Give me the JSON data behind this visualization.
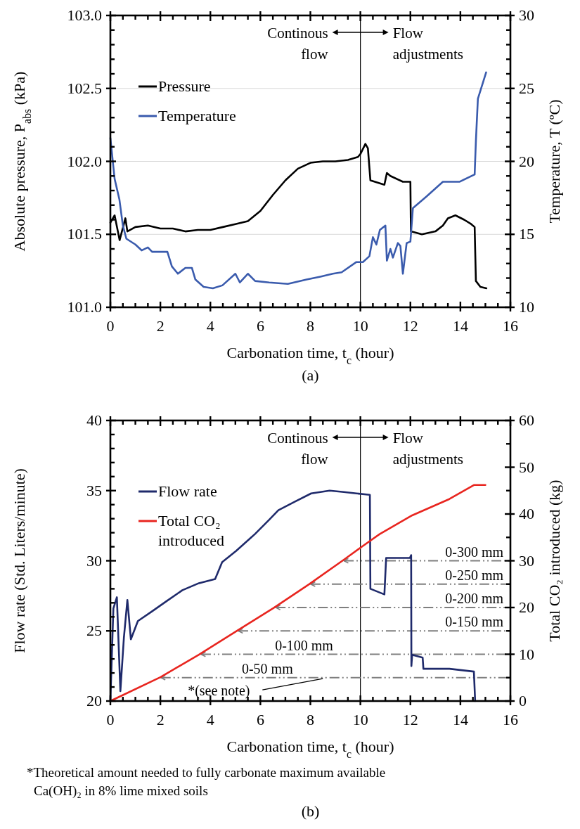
{
  "chart_data": [
    {
      "type": "line",
      "title": "(a)",
      "xlabel": "Carbonation time, t$_{c}$ (hour)",
      "ylabel": "Absolute pressure, P$_{abs}$ (kPa)",
      "y2label": "Temperature, T (ºC)",
      "xlim": [
        0,
        16
      ],
      "xticks": [
        0,
        {
          "value": 0.5,
          "label": null
        },
        {
          "value": 1,
          "label": null
        },
        {
          "value": 1.5,
          "label": null
        },
        2,
        {
          "value": 2.5,
          "label": null
        },
        {
          "value": 3,
          "label": null
        },
        {
          "value": 3.5,
          "label": null
        },
        4,
        {
          "value": 4.5,
          "label": null
        },
        {
          "value": 5,
          "label": null
        },
        {
          "value": 5.5,
          "label": null
        },
        6,
        {
          "value": 6.5,
          "label": null
        },
        {
          "value": 7,
          "label": null
        },
        {
          "value": 7.5,
          "label": null
        },
        8,
        {
          "value": 8.5,
          "label": null
        },
        {
          "value": 9,
          "label": null
        },
        {
          "value": 9.5,
          "label": null
        },
        10,
        {
          "value": 10.5,
          "label": null
        },
        {
          "value": 11,
          "label": null
        },
        {
          "value": 11.5,
          "label": null
        },
        12,
        {
          "value": 12.5,
          "label": null
        },
        {
          "value": 13,
          "label": null
        },
        {
          "value": 13.5,
          "label": null
        },
        14,
        {
          "value": 14.5,
          "label": null
        },
        {
          "value": 15,
          "label": null
        },
        {
          "value": 15.5,
          "label": null
        },
        16
      ],
      "ylim": [
        101,
        103
      ],
      "yticks": [
        {
          "value": 101,
          "label": "101.0"
        },
        {
          "value": 101.1,
          "label": null
        },
        {
          "value": 101.2,
          "label": null
        },
        {
          "value": 101.3,
          "label": null
        },
        {
          "value": 101.4,
          "label": null
        },
        101.5,
        {
          "value": 101.6,
          "label": null
        },
        {
          "value": 101.7,
          "label": null
        },
        {
          "value": 101.8,
          "label": null
        },
        {
          "value": 101.9,
          "label": null
        },
        {
          "value": 102,
          "label": "102.0"
        },
        {
          "value": 102.1,
          "label": null
        },
        {
          "value": 102.2,
          "label": null
        },
        {
          "value": 102.3,
          "label": null
        },
        {
          "value": 102.4,
          "label": null
        },
        102.5,
        {
          "value": 102.6,
          "label": null
        },
        {
          "value": 102.7,
          "label": null
        },
        {
          "value": 102.8,
          "label": null
        },
        {
          "value": 102.9,
          "label": null
        },
        {
          "value": 103,
          "label": "103.0"
        }
      ],
      "y2lim": [
        10,
        30
      ],
      "y2ticks": [
        10,
        {
          "value": 11,
          "label": null
        },
        {
          "value": 12,
          "label": null
        },
        {
          "value": 13,
          "label": null
        },
        {
          "value": 14,
          "label": null
        },
        15,
        {
          "value": 16,
          "label": null
        },
        {
          "value": 17,
          "label": null
        },
        {
          "value": 18,
          "label": null
        },
        {
          "value": 19,
          "label": null
        },
        20,
        {
          "value": 21,
          "label": null
        },
        {
          "value": 22,
          "label": null
        },
        {
          "value": 23,
          "label": null
        },
        {
          "value": 24,
          "label": null
        },
        25,
        {
          "value": 26,
          "label": null
        },
        {
          "value": 27,
          "label": null
        },
        {
          "value": 28,
          "label": null
        },
        {
          "value": 29,
          "label": null
        },
        30
      ],
      "grid": "y",
      "legend": "top left",
      "ref_lines": [
        {
          "axis": "x",
          "value": 10,
          "color": "#000000"
        }
      ],
      "annotations": [
        "Continous\nflow",
        "Flow\nadjustments"
      ],
      "series": [
        {
          "name": "Pressure",
          "color": "#000000",
          "x": [
            0,
            0.17,
            0.37,
            0.6,
            0.68,
            1.0,
            1.5,
            2.0,
            2.5,
            3.0,
            3.5,
            4.0,
            4.5,
            5.0,
            5.5,
            6.0,
            6.5,
            7.0,
            7.5,
            8.0,
            8.5,
            9.0,
            9.5,
            9.9,
            10.0,
            10.2,
            10.3,
            10.4,
            10.96,
            11.06,
            11.2,
            11.7,
            12.0,
            12.02,
            12.46,
            13.0,
            13.3,
            13.5,
            13.8,
            14.15,
            14.43,
            14.57,
            14.62,
            14.8,
            15.04
          ],
          "values": [
            101.58,
            101.63,
            101.46,
            101.61,
            101.52,
            101.55,
            101.56,
            101.54,
            101.54,
            101.52,
            101.53,
            101.53,
            101.55,
            101.57,
            101.59,
            101.66,
            101.77,
            101.87,
            101.95,
            101.99,
            102.0,
            102.0,
            102.01,
            102.03,
            102.05,
            102.12,
            102.09,
            101.87,
            101.84,
            101.92,
            101.9,
            101.86,
            101.86,
            101.52,
            101.5,
            101.52,
            101.56,
            101.61,
            101.63,
            101.6,
            101.57,
            101.55,
            101.18,
            101.14,
            101.13
          ]
        },
        {
          "name": "Temperature",
          "color": "#3a5bad",
          "axis": "y2",
          "x": [
            0,
            0.17,
            0.36,
            0.5,
            0.64,
            1.0,
            1.25,
            1.5,
            1.67,
            2.28,
            2.46,
            2.7,
            3.0,
            3.26,
            3.4,
            3.73,
            4.1,
            4.48,
            5.0,
            5.18,
            5.5,
            5.79,
            6.35,
            7.1,
            7.85,
            8.4,
            8.9,
            9.25,
            9.84,
            10.1,
            10.36,
            10.5,
            10.64,
            10.78,
            11.0,
            11.06,
            11.2,
            11.3,
            11.5,
            11.6,
            11.7,
            11.85,
            12.0,
            12.1,
            12.65,
            13.3,
            13.96,
            14.57,
            14.62,
            14.7,
            15.03
          ],
          "values": [
            21.6,
            18.8,
            17.4,
            15.6,
            14.7,
            14.3,
            13.9,
            14.1,
            13.8,
            13.8,
            12.8,
            12.3,
            12.7,
            12.7,
            11.9,
            11.4,
            11.3,
            11.5,
            12.3,
            11.7,
            12.3,
            11.8,
            11.7,
            11.6,
            11.9,
            12.1,
            12.3,
            12.4,
            13.1,
            13.1,
            13.5,
            14.8,
            14.3,
            15.3,
            15.6,
            13.2,
            14.0,
            13.4,
            14.4,
            14.2,
            12.3,
            14.4,
            14.5,
            16.8,
            17.6,
            18.6,
            18.6,
            19.1,
            21.4,
            24.3,
            26.1
          ]
        }
      ]
    },
    {
      "type": "line",
      "title": "(b)",
      "xlabel": "Carbonation time, t$_{c}$ (hour)",
      "ylabel": "Flow rate (Std. Liters/minute)",
      "y2label": "Total CO₂ introduced (kg)",
      "xlim": [
        0,
        16
      ],
      "xticks": [
        0,
        {
          "value": 0.5,
          "label": null
        },
        {
          "value": 1,
          "label": null
        },
        {
          "value": 1.5,
          "label": null
        },
        2,
        {
          "value": 2.5,
          "label": null
        },
        {
          "value": 3,
          "label": null
        },
        {
          "value": 3.5,
          "label": null
        },
        4,
        {
          "value": 4.5,
          "label": null
        },
        {
          "value": 5,
          "label": null
        },
        {
          "value": 5.5,
          "label": null
        },
        6,
        {
          "value": 6.5,
          "label": null
        },
        {
          "value": 7,
          "label": null
        },
        {
          "value": 7.5,
          "label": null
        },
        8,
        {
          "value": 8.5,
          "label": null
        },
        {
          "value": 9,
          "label": null
        },
        {
          "value": 9.5,
          "label": null
        },
        10,
        {
          "value": 10.5,
          "label": null
        },
        {
          "value": 11,
          "label": null
        },
        {
          "value": 11.5,
          "label": null
        },
        12,
        {
          "value": 12.5,
          "label": null
        },
        {
          "value": 13,
          "label": null
        },
        {
          "value": 13.5,
          "label": null
        },
        14,
        {
          "value": 14.5,
          "label": null
        },
        {
          "value": 15,
          "label": null
        },
        {
          "value": 15.5,
          "label": null
        },
        16
      ],
      "ylim": [
        20,
        40
      ],
      "yticks": [
        20,
        {
          "value": 21,
          "label": null
        },
        {
          "value": 22,
          "label": null
        },
        {
          "value": 23,
          "label": null
        },
        {
          "value": 24,
          "label": null
        },
        25,
        {
          "value": 26,
          "label": null
        },
        {
          "value": 27,
          "label": null
        },
        {
          "value": 28,
          "label": null
        },
        {
          "value": 29,
          "label": null
        },
        30,
        {
          "value": 31,
          "label": null
        },
        {
          "value": 32,
          "label": null
        },
        {
          "value": 33,
          "label": null
        },
        {
          "value": 34,
          "label": null
        },
        35,
        {
          "value": 36,
          "label": null
        },
        {
          "value": 37,
          "label": null
        },
        {
          "value": 38,
          "label": null
        },
        {
          "value": 39,
          "label": null
        },
        40
      ],
      "y2lim": [
        0,
        60
      ],
      "y2ticks": [
        0,
        {
          "value": 5,
          "label": null
        },
        10,
        {
          "value": 15,
          "label": null
        },
        20,
        {
          "value": 25,
          "label": null
        },
        30,
        {
          "value": 35,
          "label": null
        },
        40,
        {
          "value": 45,
          "label": null
        },
        50,
        {
          "value": 55,
          "label": null
        },
        60
      ],
      "legend": "top left",
      "ref_lines": [
        {
          "axis": "x",
          "value": 10,
          "color": "#000000"
        },
        {
          "axis": "y2",
          "value": 5,
          "label": "0-50 mm",
          "color": "#7f7f7f",
          "line_style": "dashed"
        },
        {
          "axis": "y2",
          "value": 10,
          "label": "0-100 mm",
          "color": "#7f7f7f",
          "line_style": "dashed"
        },
        {
          "axis": "y2",
          "value": 15,
          "label": "0-150 mm",
          "color": "#7f7f7f",
          "line_style": "dashed"
        },
        {
          "axis": "y2",
          "value": 20,
          "label": "0-200 mm",
          "color": "#7f7f7f",
          "line_style": "dashed"
        },
        {
          "axis": "y2",
          "value": 25,
          "label": "0-250 mm",
          "color": "#7f7f7f",
          "line_style": "dashed"
        },
        {
          "axis": "y2",
          "value": 30,
          "label": "0-300 mm",
          "color": "#7f7f7f",
          "line_style": "dashed"
        }
      ],
      "annotations": [
        "Continous\nflow",
        "Flow\nadjustments",
        {
          "text": "*(see note)",
          "x": 8.5,
          "y": 21.7
        },
        "*Theoretical amount needed to fully carbonate maximum available\nCa(OH)₂  in 8% lime mixed soils"
      ],
      "series": [
        {
          "name": "Flow rate",
          "color": "#1f2a6b",
          "x": [
            0,
            0.12,
            0.26,
            0.4,
            0.54,
            0.68,
            0.82,
            1.1,
            1.67,
            2.23,
            2.88,
            3.54,
            4.19,
            4.47,
            5.03,
            5.78,
            6.34,
            6.72,
            7.37,
            8.03,
            8.77,
            9.34,
            9.84,
            10.38,
            10.4,
            10.96,
            11.03,
            11.98,
            12.03,
            12.04,
            12.07,
            12.49,
            12.52,
            13.56,
            14.54,
            14.59
          ],
          "values": [
            20,
            26.6,
            27.4,
            20.7,
            24.5,
            27.2,
            24.4,
            25.7,
            26.4,
            27.1,
            27.9,
            28.4,
            28.7,
            29.9,
            30.7,
            31.9,
            32.9,
            33.6,
            34.2,
            34.8,
            35.0,
            34.9,
            34.8,
            34.7,
            28.0,
            27.6,
            30.2,
            30.2,
            30.4,
            22.5,
            23.3,
            23.1,
            22.3,
            22.3,
            22.1,
            20.0
          ]
        },
        {
          "name": "Total CO₂ introduced",
          "color": "#e8251f",
          "axis": "y2",
          "x": [
            0,
            2.0,
            3.54,
            5.03,
            6.53,
            7.93,
            9.36,
            10.03,
            10.77,
            12.07,
            13.56,
            14.54,
            15.0
          ],
          "values": [
            0,
            5.1,
            9.9,
            14.9,
            19.9,
            24.9,
            30.3,
            32.9,
            35.7,
            39.7,
            43.2,
            46.2,
            46.2
          ]
        }
      ]
    }
  ]
}
